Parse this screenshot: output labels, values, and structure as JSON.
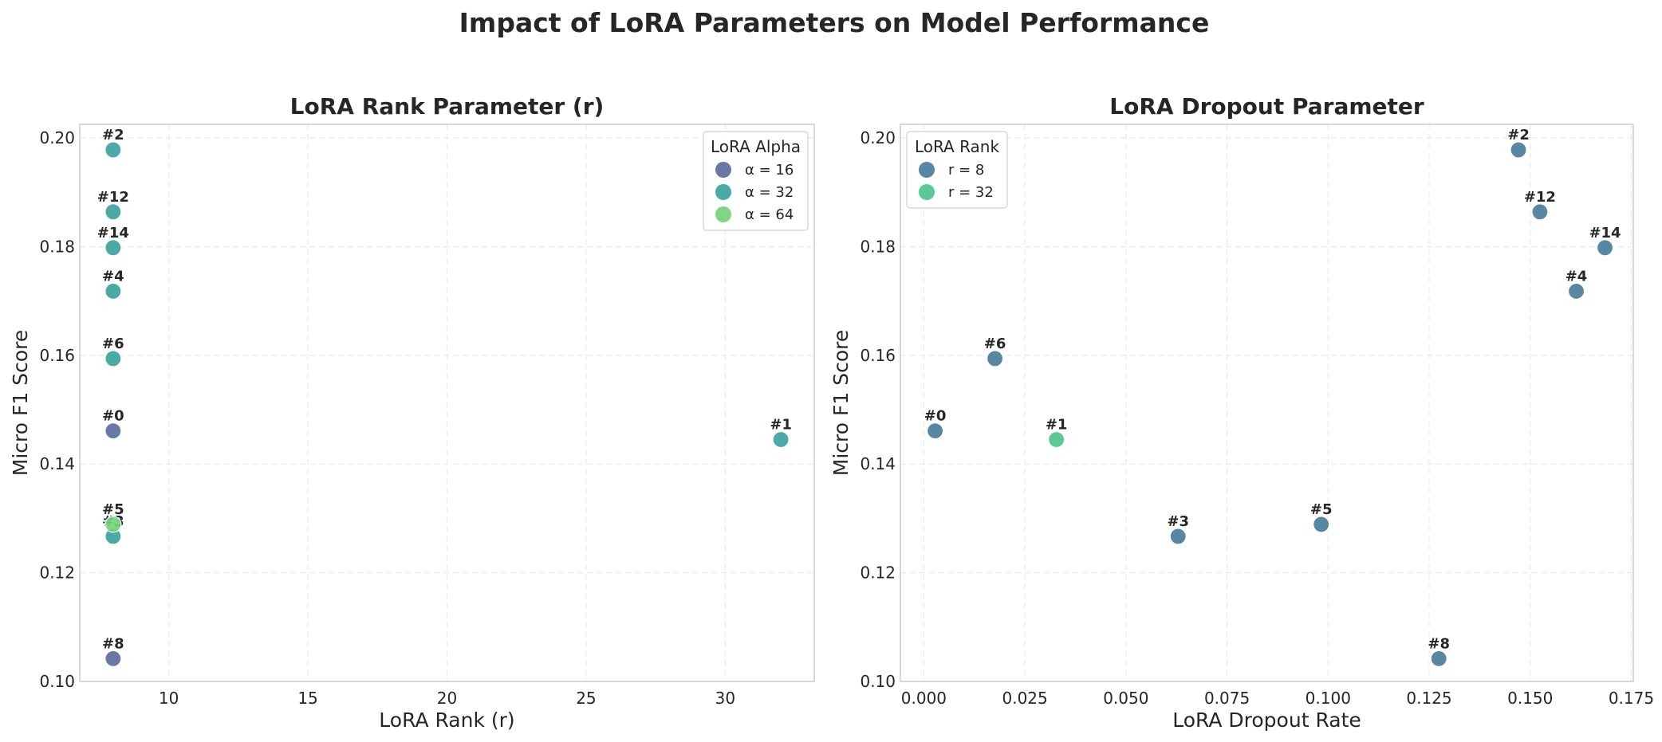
{
  "figure": {
    "suptitle": "Impact of LoRA Parameters on Model Performance"
  },
  "chart_data": [
    {
      "type": "scatter",
      "title": "LoRA Rank Parameter (r)",
      "xlabel": "LoRA Rank (r)",
      "ylabel": "Micro F1 Score",
      "xlim": [
        6.8,
        33.2
      ],
      "ylim": [
        0.1,
        0.2025
      ],
      "xticks": [
        10,
        15,
        20,
        25,
        30
      ],
      "yticks": [
        0.1,
        0.12,
        0.14,
        0.16,
        0.18,
        0.2
      ],
      "xtick_labels": [
        "10",
        "15",
        "20",
        "25",
        "30"
      ],
      "ytick_labels": [
        "0.10",
        "0.12",
        "0.14",
        "0.16",
        "0.18",
        "0.20"
      ],
      "grid": true,
      "legend": {
        "title": "LoRA Alpha",
        "position": "top-right",
        "entries": [
          {
            "label": "α = 16",
            "color": "#5b6ea0"
          },
          {
            "label": "α = 32",
            "color": "#3aa39e"
          },
          {
            "label": "α = 64",
            "color": "#74d27a"
          }
        ]
      },
      "points": [
        {
          "label": "#2",
          "x": 8,
          "y": 0.1978,
          "color": "#3aa39e"
        },
        {
          "label": "#12",
          "x": 8,
          "y": 0.1864,
          "color": "#3aa39e"
        },
        {
          "label": "#14",
          "x": 8,
          "y": 0.1798,
          "color": "#3aa39e"
        },
        {
          "label": "#4",
          "x": 8,
          "y": 0.1718,
          "color": "#3aa39e"
        },
        {
          "label": "#6",
          "x": 8,
          "y": 0.1594,
          "color": "#3aa39e"
        },
        {
          "label": "#0",
          "x": 8,
          "y": 0.1461,
          "color": "#5b6ea0"
        },
        {
          "label": "#1",
          "x": 32,
          "y": 0.1445,
          "color": "#3aa39e"
        },
        {
          "label": "#3",
          "x": 8,
          "y": 0.1267,
          "color": "#3aa39e"
        },
        {
          "label": "#5",
          "x": 8,
          "y": 0.1289,
          "color": "#74d27a"
        },
        {
          "label": "#8",
          "x": 8,
          "y": 0.1042,
          "color": "#5b6ea0"
        }
      ]
    },
    {
      "type": "scatter",
      "title": "LoRA Dropout Parameter",
      "xlabel": "LoRA Dropout Rate",
      "ylabel": "Micro F1 Score",
      "xlim": [
        -0.0058,
        0.1755
      ],
      "ylim": [
        0.1,
        0.2025
      ],
      "xticks": [
        0.0,
        0.025,
        0.05,
        0.075,
        0.1,
        0.125,
        0.15,
        0.175
      ],
      "yticks": [
        0.1,
        0.12,
        0.14,
        0.16,
        0.18,
        0.2
      ],
      "xtick_labels": [
        "0.000",
        "0.025",
        "0.050",
        "0.075",
        "0.100",
        "0.125",
        "0.150",
        "0.175"
      ],
      "ytick_labels": [
        "0.10",
        "0.12",
        "0.14",
        "0.16",
        "0.18",
        "0.20"
      ],
      "grid": true,
      "legend": {
        "title": "LoRA Rank",
        "position": "top-left",
        "entries": [
          {
            "label": "r = 8",
            "color": "#4a7d9c"
          },
          {
            "label": "r = 32",
            "color": "#4cc48c"
          }
        ]
      },
      "points": [
        {
          "label": "#2",
          "x": 0.1471,
          "y": 0.1978,
          "color": "#4a7d9c"
        },
        {
          "label": "#12",
          "x": 0.1524,
          "y": 0.1864,
          "color": "#4a7d9c"
        },
        {
          "label": "#14",
          "x": 0.1685,
          "y": 0.1798,
          "color": "#4a7d9c"
        },
        {
          "label": "#4",
          "x": 0.1614,
          "y": 0.1718,
          "color": "#4a7d9c"
        },
        {
          "label": "#6",
          "x": 0.0176,
          "y": 0.1594,
          "color": "#4a7d9c"
        },
        {
          "label": "#0",
          "x": 0.0028,
          "y": 0.1461,
          "color": "#4a7d9c"
        },
        {
          "label": "#1",
          "x": 0.0328,
          "y": 0.1445,
          "color": "#4cc48c"
        },
        {
          "label": "#3",
          "x": 0.0629,
          "y": 0.1267,
          "color": "#4a7d9c"
        },
        {
          "label": "#5",
          "x": 0.0983,
          "y": 0.1289,
          "color": "#4a7d9c"
        },
        {
          "label": "#8",
          "x": 0.1274,
          "y": 0.1042,
          "color": "#4a7d9c"
        }
      ]
    }
  ]
}
